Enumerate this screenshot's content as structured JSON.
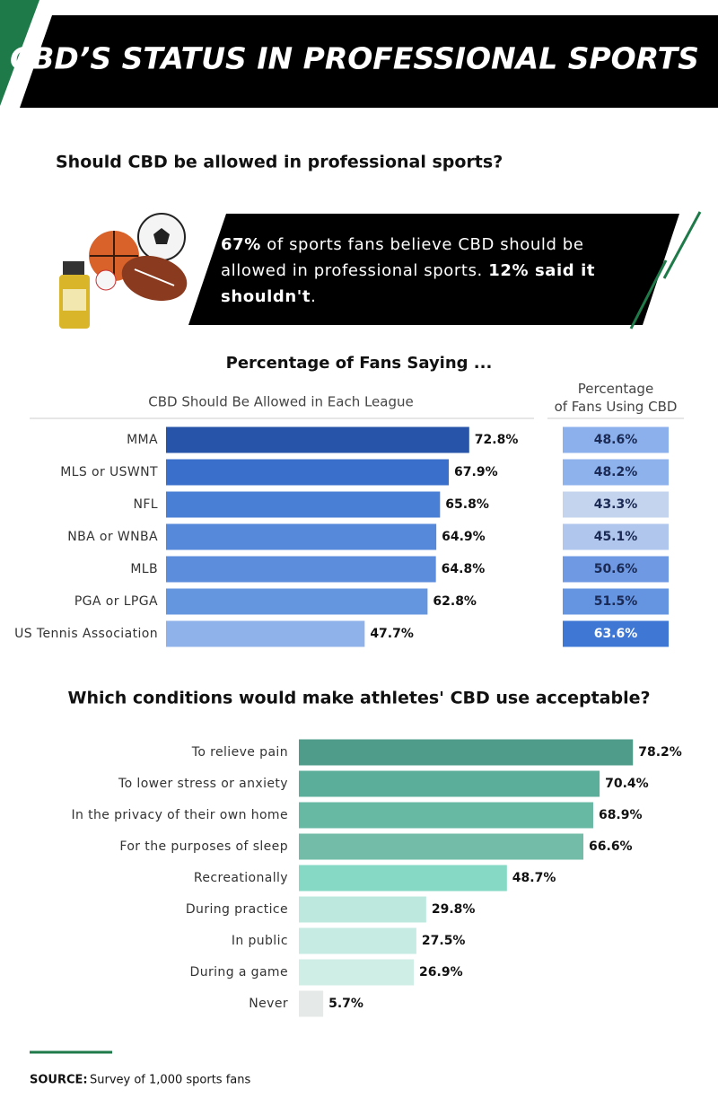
{
  "title": "CBD’S STATUS IN PROFESSIONAL SPORTS",
  "question": "Should CBD be allowed in professional sports?",
  "callout": [
    "67%",
    " of sports fans believe CBD should be allowed in professional sports. ",
    "12% said it shouldn't",
    "."
  ],
  "chart_data": [
    {
      "type": "bar",
      "title": "Percentage of Fans Saying ...",
      "subtitle": "CBD Should Be Allowed in Each League",
      "categories": [
        "MMA",
        "MLS or USWNT",
        "NFL",
        "NBA or WNBA",
        "MLB",
        "PGA or LPGA",
        "US Tennis Association"
      ],
      "values": [
        72.8,
        67.9,
        65.8,
        64.9,
        64.8,
        62.8,
        47.7
      ],
      "value_labels": [
        "72.8%",
        "67.9%",
        "65.8%",
        "64.9%",
        "64.8%",
        "62.8%",
        "47.7%"
      ],
      "colors": [
        "#2754a8",
        "#3a6fcc",
        "#4a7fd6",
        "#5689da",
        "#5c8ddc",
        "#6496e0",
        "#8fb2ea"
      ]
    },
    {
      "type": "heatmap",
      "title": "Percentage of Fans Using CBD",
      "values": [
        48.6,
        48.2,
        43.3,
        45.1,
        50.6,
        51.5,
        63.6
      ],
      "value_labels": [
        "48.6%",
        "48.2%",
        "43.3%",
        "45.1%",
        "50.6%",
        "51.5%",
        "63.6%"
      ],
      "colors": [
        "#8cb0ec",
        "#8eb2ec",
        "#c5d4ee",
        "#b0c6ec",
        "#6f99e2",
        "#6594e0",
        "#3e78d4"
      ]
    },
    {
      "type": "bar",
      "title": "Which conditions would make athletes' CBD use acceptable?",
      "categories": [
        "To relieve pain",
        "To lower stress or anxiety",
        "In the privacy of their own home",
        "For the purposes of sleep",
        "Recreationally",
        "During practice",
        "In public",
        "During a game",
        "Never"
      ],
      "values": [
        78.2,
        70.4,
        68.9,
        66.6,
        48.7,
        29.8,
        27.5,
        26.9,
        5.7
      ],
      "value_labels": [
        "78.2%",
        "70.4%",
        "68.9%",
        "66.6%",
        "48.7%",
        "29.8%",
        "27.5%",
        "26.9%",
        "5.7%"
      ],
      "colors": [
        "#4f9c8b",
        "#5aae9a",
        "#68b9a4",
        "#72bca8",
        "#86d9c4",
        "#bde8de",
        "#c6ebe2",
        "#cfeee6",
        "#e5e9e8"
      ]
    }
  ],
  "source": {
    "label": "SOURCE:",
    "text": "Survey of 1,000 sports fans"
  }
}
